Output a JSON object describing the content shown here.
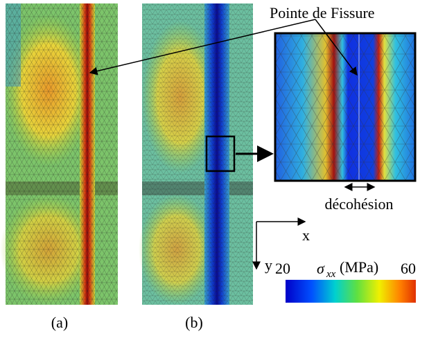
{
  "header": {
    "pointer_label": "Pointe de Fissure"
  },
  "panels": [
    {
      "label": "(a)"
    },
    {
      "label": "(b)"
    }
  ],
  "inset": {
    "annotation": "décohésion"
  },
  "axes": {
    "x": "x",
    "y": "y"
  },
  "colorbar": {
    "min": 20,
    "max": 60,
    "symbol": "σ",
    "subscript": "xx",
    "unit": "(MPa)"
  }
}
